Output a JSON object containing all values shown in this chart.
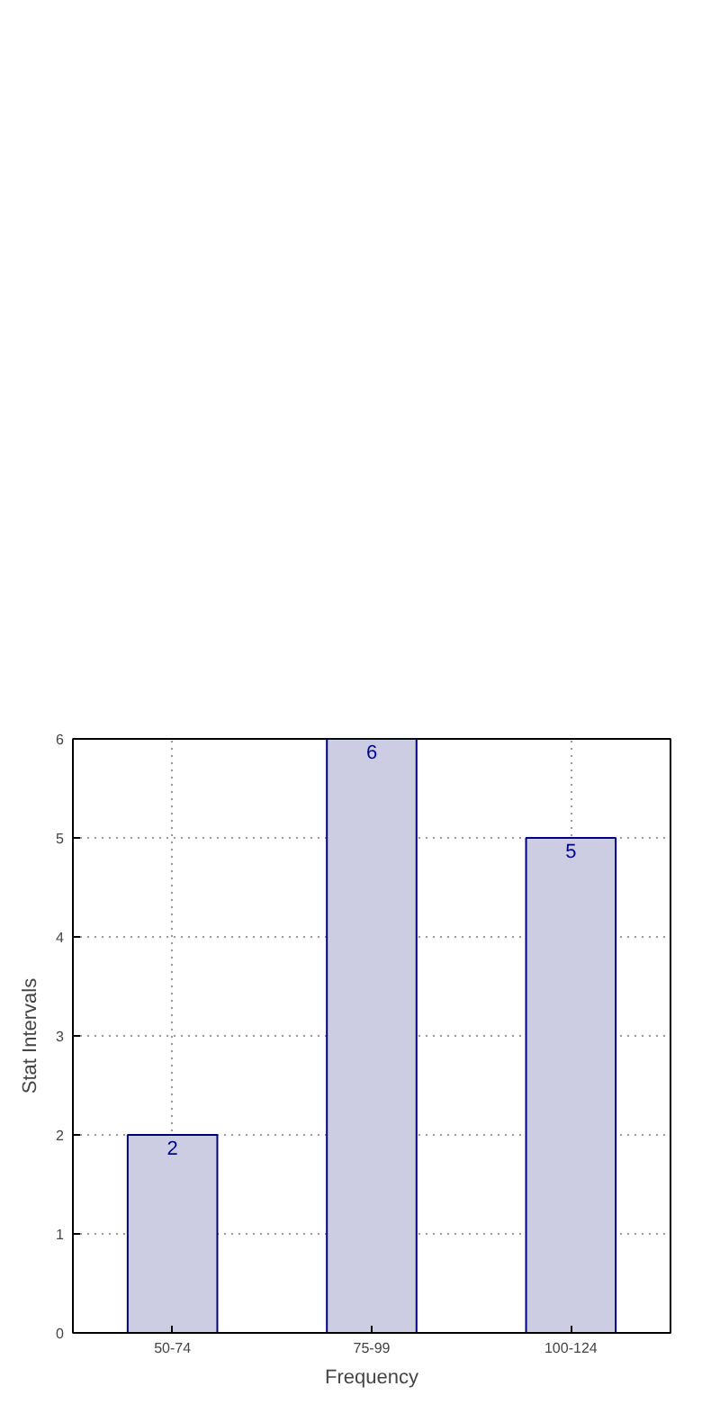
{
  "chart_data": {
    "type": "bar",
    "xlabel": "Frequency",
    "ylabel": "Stat Intervals",
    "categories": [
      "50-74",
      "75-99",
      "100-124"
    ],
    "values": [
      2,
      6,
      5
    ],
    "color": "#cccce3",
    "ylim": [
      0,
      6
    ],
    "yticks": [
      0,
      1,
      2,
      3,
      4,
      5,
      6
    ],
    "grid": true,
    "data_labels": true
  }
}
